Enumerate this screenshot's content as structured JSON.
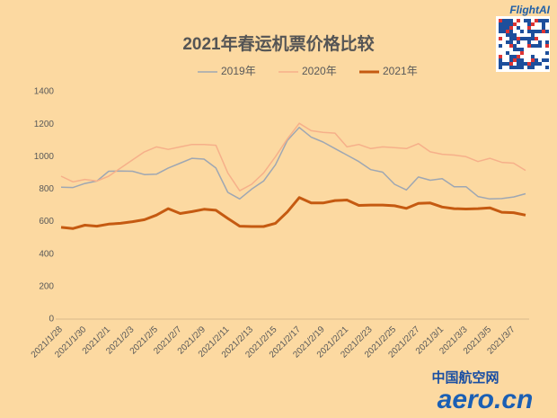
{
  "chart_data": {
    "type": "line",
    "title": "2021年春运机票价格比较",
    "categories": [
      "2021/1/28",
      null,
      "2021/1/30",
      null,
      "2021/2/1",
      null,
      "2021/2/3",
      null,
      "2021/2/5",
      null,
      "2021/2/7",
      null,
      "2021/2/9",
      null,
      "2021/2/11",
      null,
      "2021/2/13",
      null,
      "2021/2/15",
      null,
      "2021/2/17",
      null,
      "2021/2/19",
      null,
      "2021/2/21",
      null,
      "2021/2/23",
      null,
      "2021/2/25",
      null,
      "2021/2/27",
      null,
      "2021/3/1",
      null,
      "2021/3/3",
      null,
      "2021/3/5",
      null,
      "2021/3/7",
      null
    ],
    "series": [
      {
        "name": "2019年",
        "color": "#9ea7b3",
        "width": 1.5,
        "values": [
          812,
          810,
          835,
          850,
          910,
          912,
          910,
          890,
          892,
          930,
          960,
          990,
          985,
          930,
          780,
          740,
          800,
          850,
          950,
          1100,
          1180,
          1120,
          1090,
          1050,
          1010,
          970,
          920,
          905,
          830,
          795,
          875,
          855,
          865,
          815,
          815,
          755,
          740,
          742,
          752,
          772
        ]
      },
      {
        "name": "2020年",
        "color": "#f6b08a",
        "width": 1.5,
        "values": [
          880,
          845,
          860,
          850,
          880,
          930,
          980,
          1030,
          1060,
          1045,
          1060,
          1075,
          1075,
          1070,
          900,
          790,
          830,
          900,
          1000,
          1110,
          1205,
          1160,
          1150,
          1145,
          1060,
          1075,
          1050,
          1060,
          1055,
          1050,
          1080,
          1030,
          1015,
          1010,
          1000,
          970,
          990,
          965,
          960,
          915
        ]
      },
      {
        "name": "2021年",
        "color": "#c55a11",
        "width": 3,
        "values": [
          565,
          558,
          578,
          572,
          585,
          590,
          600,
          612,
          640,
          680,
          650,
          662,
          676,
          670,
          620,
          572,
          570,
          570,
          590,
          660,
          748,
          715,
          715,
          730,
          733,
          700,
          702,
          702,
          698,
          682,
          712,
          715,
          690,
          680,
          678,
          680,
          685,
          658,
          655,
          640
        ]
      }
    ],
    "ylim": [
      0,
      1400
    ],
    "yticks": [
      0,
      200,
      400,
      600,
      800,
      1000,
      1200,
      1400
    ],
    "grid": false
  },
  "brand": {
    "top": "FlightAI",
    "bottom_cn": "中国航空网",
    "bottom": "aero.cn"
  }
}
